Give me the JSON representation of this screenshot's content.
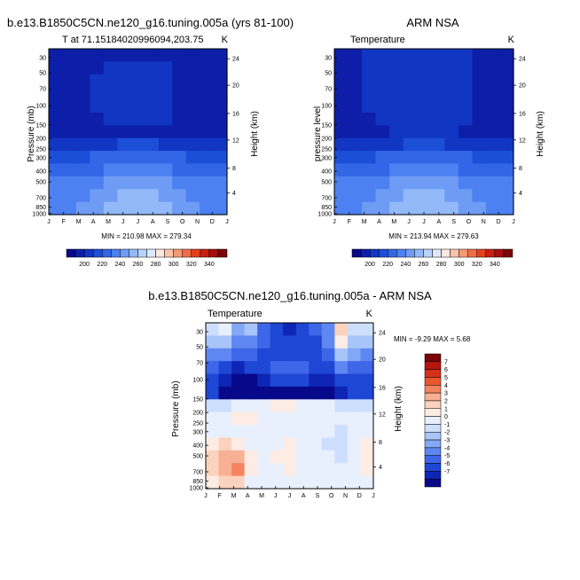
{
  "colors": {
    "levels": [
      "#08088a",
      "#0d1fa8",
      "#1236c4",
      "#1c4fd8",
      "#3366e6",
      "#4d80f0",
      "#6e9cf5",
      "#93b9f8",
      "#b8d3fb",
      "#dce9fd",
      "#fde7dc",
      "#fbc5ab",
      "#f79a73",
      "#f16c44",
      "#e3401f",
      "#c91e10",
      "#a50f0f",
      "#7a0606"
    ],
    "diff": [
      "#08088a",
      "#0f25b5",
      "#1e47d6",
      "#3d66e8",
      "#5f87f1",
      "#83a8f6",
      "#a8c5fa",
      "#cddffd",
      "#e8f0fe",
      "#fdece3",
      "#fbd2bd",
      "#f8b094",
      "#f3845f",
      "#eb5530",
      "#d5301a",
      "#b5150d",
      "#7a0606"
    ]
  },
  "chart_data": [
    {
      "type": "heatmap",
      "title": "b.e13.B1850C5CN.ne120_g16.tuning.005a (yrs 81-100)",
      "left_label": "T at 71.15184020996094,203.75",
      "right_label": "K",
      "ylabel": "Pressure (mb)",
      "ylabel_right": "Height (km)",
      "months": [
        "J",
        "F",
        "M",
        "A",
        "M",
        "J",
        "J",
        "A",
        "S",
        "O",
        "N",
        "D",
        "J"
      ],
      "pressure_ticks": [
        "30",
        "50",
        "70",
        "100",
        "150",
        "200",
        "250",
        "300",
        "400",
        "500",
        "700",
        "850",
        "1000"
      ],
      "height_ticks": [
        "24",
        "20",
        "16",
        "12",
        "8",
        "4"
      ],
      "minmax": "MIN = 210.98 MAX = 279.34",
      "field": [
        [
          218,
          219,
          219,
          219,
          219,
          219,
          219,
          219,
          219,
          219,
          219,
          218,
          218
        ],
        [
          217,
          218,
          218,
          219,
          220,
          220,
          220,
          220,
          220,
          219,
          218,
          217,
          217
        ],
        [
          217,
          217,
          218,
          220,
          222,
          222,
          223,
          222,
          221,
          219,
          217,
          217,
          217
        ],
        [
          216,
          217,
          218,
          221,
          224,
          226,
          226,
          225,
          223,
          219,
          217,
          216,
          216
        ],
        [
          216,
          217,
          218,
          220,
          223,
          226,
          227,
          226,
          224,
          219,
          217,
          216,
          216
        ],
        [
          215,
          216,
          217,
          219,
          221,
          222,
          222,
          222,
          220,
          218,
          216,
          215,
          215
        ],
        [
          216,
          216,
          217,
          218,
          219,
          219,
          219,
          219,
          218,
          217,
          216,
          216,
          216
        ],
        [
          224,
          224,
          225,
          227,
          229,
          231,
          231,
          231,
          229,
          227,
          225,
          224,
          224
        ],
        [
          234,
          235,
          237,
          240,
          244,
          247,
          248,
          247,
          244,
          240,
          237,
          235,
          234
        ],
        [
          242,
          243,
          246,
          249,
          253,
          256,
          257,
          256,
          253,
          249,
          246,
          243,
          242
        ],
        [
          251,
          252,
          254,
          257,
          262,
          266,
          267,
          266,
          262,
          257,
          254,
          252,
          251
        ],
        [
          256,
          257,
          259,
          262,
          267,
          272,
          274,
          272,
          267,
          262,
          259,
          257,
          256
        ],
        [
          258,
          259,
          261,
          264,
          270,
          276,
          279,
          276,
          270,
          264,
          261,
          259,
          258
        ]
      ],
      "levels": [
        200,
        210,
        220,
        230,
        240,
        250,
        260,
        270,
        280,
        290,
        300,
        310,
        320,
        330,
        340,
        350
      ]
    },
    {
      "type": "heatmap",
      "title": "ARM NSA",
      "left_label": "Temperature",
      "right_label": "K",
      "ylabel": "pressure level",
      "ylabel_right": "Height (km)",
      "months": [
        "J",
        "F",
        "M",
        "A",
        "M",
        "J",
        "J",
        "A",
        "S",
        "O",
        "N",
        "D",
        "J"
      ],
      "pressure_ticks": [
        "30",
        "50",
        "70",
        "100",
        "150",
        "200",
        "250",
        "300",
        "400",
        "500",
        "700",
        "850",
        "1000"
      ],
      "height_ticks": [
        "24",
        "20",
        "16",
        "12",
        "8",
        "4"
      ],
      "minmax": "MIN = 213.94 MAX = 279.63",
      "field": [
        [
          215,
          218,
          222,
          224,
          225,
          226,
          228,
          227,
          226,
          223,
          218,
          214,
          215
        ],
        [
          215,
          217,
          222,
          224,
          225,
          226,
          226,
          226,
          226,
          223,
          218,
          214,
          215
        ],
        [
          215,
          217,
          222,
          224,
          225,
          226,
          226,
          226,
          226,
          222,
          218,
          214,
          215
        ],
        [
          215,
          217,
          222,
          224,
          225,
          226,
          226,
          226,
          225,
          222,
          218,
          214,
          215
        ],
        [
          215,
          217,
          221,
          224,
          225,
          225,
          225,
          225,
          224,
          221,
          217,
          215,
          215
        ],
        [
          214,
          216,
          219,
          222,
          223,
          224,
          224,
          224,
          223,
          220,
          216,
          214,
          214
        ],
        [
          214,
          215,
          216,
          218,
          220,
          222,
          223,
          222,
          220,
          217,
          215,
          214,
          214
        ],
        [
          222,
          222,
          223,
          226,
          228,
          230,
          231,
          230,
          228,
          226,
          223,
          222,
          222
        ],
        [
          232,
          233,
          236,
          240,
          244,
          247,
          248,
          247,
          244,
          240,
          236,
          233,
          232
        ],
        [
          240,
          241,
          245,
          249,
          253,
          256,
          257,
          256,
          253,
          249,
          245,
          241,
          240
        ],
        [
          250,
          251,
          254,
          258,
          262,
          266,
          267,
          266,
          262,
          258,
          254,
          251,
          250
        ],
        [
          254,
          255,
          258,
          262,
          267,
          272,
          274,
          272,
          267,
          262,
          258,
          255,
          254
        ],
        [
          256,
          257,
          260,
          264,
          270,
          276,
          279,
          276,
          270,
          264,
          260,
          257,
          256
        ]
      ],
      "levels": [
        200,
        210,
        220,
        230,
        240,
        250,
        260,
        270,
        280,
        290,
        300,
        310,
        320,
        330,
        340,
        350
      ]
    },
    {
      "type": "heatmap",
      "title": "b.e13.B1850C5CN.ne120_g16.tuning.005a - ARM NSA",
      "left_label": "Temperature",
      "right_label": "K",
      "ylabel": "Pressure (mb)",
      "ylabel_right": "Height (km)",
      "months": [
        "J",
        "F",
        "M",
        "A",
        "M",
        "J",
        "J",
        "A",
        "S",
        "O",
        "N",
        "D",
        "J"
      ],
      "pressure_ticks": [
        "30",
        "50",
        "70",
        "100",
        "150",
        "200",
        "250",
        "300",
        "400",
        "500",
        "700",
        "850",
        "1000"
      ],
      "height_ticks": [
        "24",
        "20",
        "16",
        "12",
        "8",
        "4"
      ],
      "minmax": "MIN = -9.29 MAX =  5.68",
      "field": [
        [
          -1,
          0,
          -3,
          -2,
          -5,
          -6,
          -7,
          -6,
          -5,
          -4,
          2,
          -1,
          -1
        ],
        [
          -2,
          -2,
          -4,
          -4,
          -5,
          -6,
          -6,
          -6,
          -6,
          -4,
          1,
          -2,
          -2
        ],
        [
          -4,
          -4,
          -5,
          -5,
          -6,
          -6,
          -6,
          -6,
          -6,
          -5,
          -2,
          -3,
          -4
        ],
        [
          -5,
          -6,
          -7,
          -6,
          -6,
          -5,
          -5,
          -5,
          -6,
          -6,
          -4,
          -5,
          -5
        ],
        [
          -6,
          -7,
          -8,
          -8,
          -7,
          -6,
          -6,
          -6,
          -7,
          -7,
          -6,
          -6,
          -6
        ],
        [
          -6,
          -8,
          -9,
          -9,
          -8,
          -8,
          -8,
          -8,
          -9,
          -8,
          -7,
          -6,
          -6
        ],
        [
          -1,
          -1,
          0,
          0,
          0,
          1,
          1,
          0,
          0,
          0,
          -1,
          -1,
          -1
        ],
        [
          0,
          0,
          1,
          1,
          0,
          0,
          0,
          0,
          0,
          0,
          0,
          0,
          0
        ],
        [
          0,
          0,
          0,
          0,
          0,
          0,
          0,
          0,
          0,
          0,
          -1,
          0,
          0
        ],
        [
          1,
          2,
          1,
          0,
          0,
          0,
          1,
          0,
          0,
          -1,
          -1,
          0,
          1
        ],
        [
          2,
          3,
          3,
          1,
          0,
          1,
          1,
          0,
          0,
          0,
          -1,
          0,
          1
        ],
        [
          2,
          3,
          4,
          1,
          0,
          0,
          1,
          0,
          0,
          0,
          0,
          0,
          1
        ],
        [
          1,
          2,
          2,
          0,
          0,
          0,
          0,
          0,
          0,
          0,
          0,
          0,
          0
        ]
      ],
      "levels": [
        -8,
        -7,
        -6,
        -5,
        -4,
        -3,
        -2,
        -1,
        0,
        1,
        2,
        3,
        4,
        5,
        6,
        7,
        8
      ]
    }
  ],
  "legend_top_labels": [
    "200",
    "220",
    "240",
    "260",
    "280",
    "300",
    "320",
    "340"
  ],
  "legend_diff_labels": [
    "7",
    "6",
    "5",
    "4",
    "3",
    "2",
    "1",
    "0",
    "-1",
    "-2",
    "-3",
    "-4",
    "-5",
    "-6",
    "-7"
  ]
}
